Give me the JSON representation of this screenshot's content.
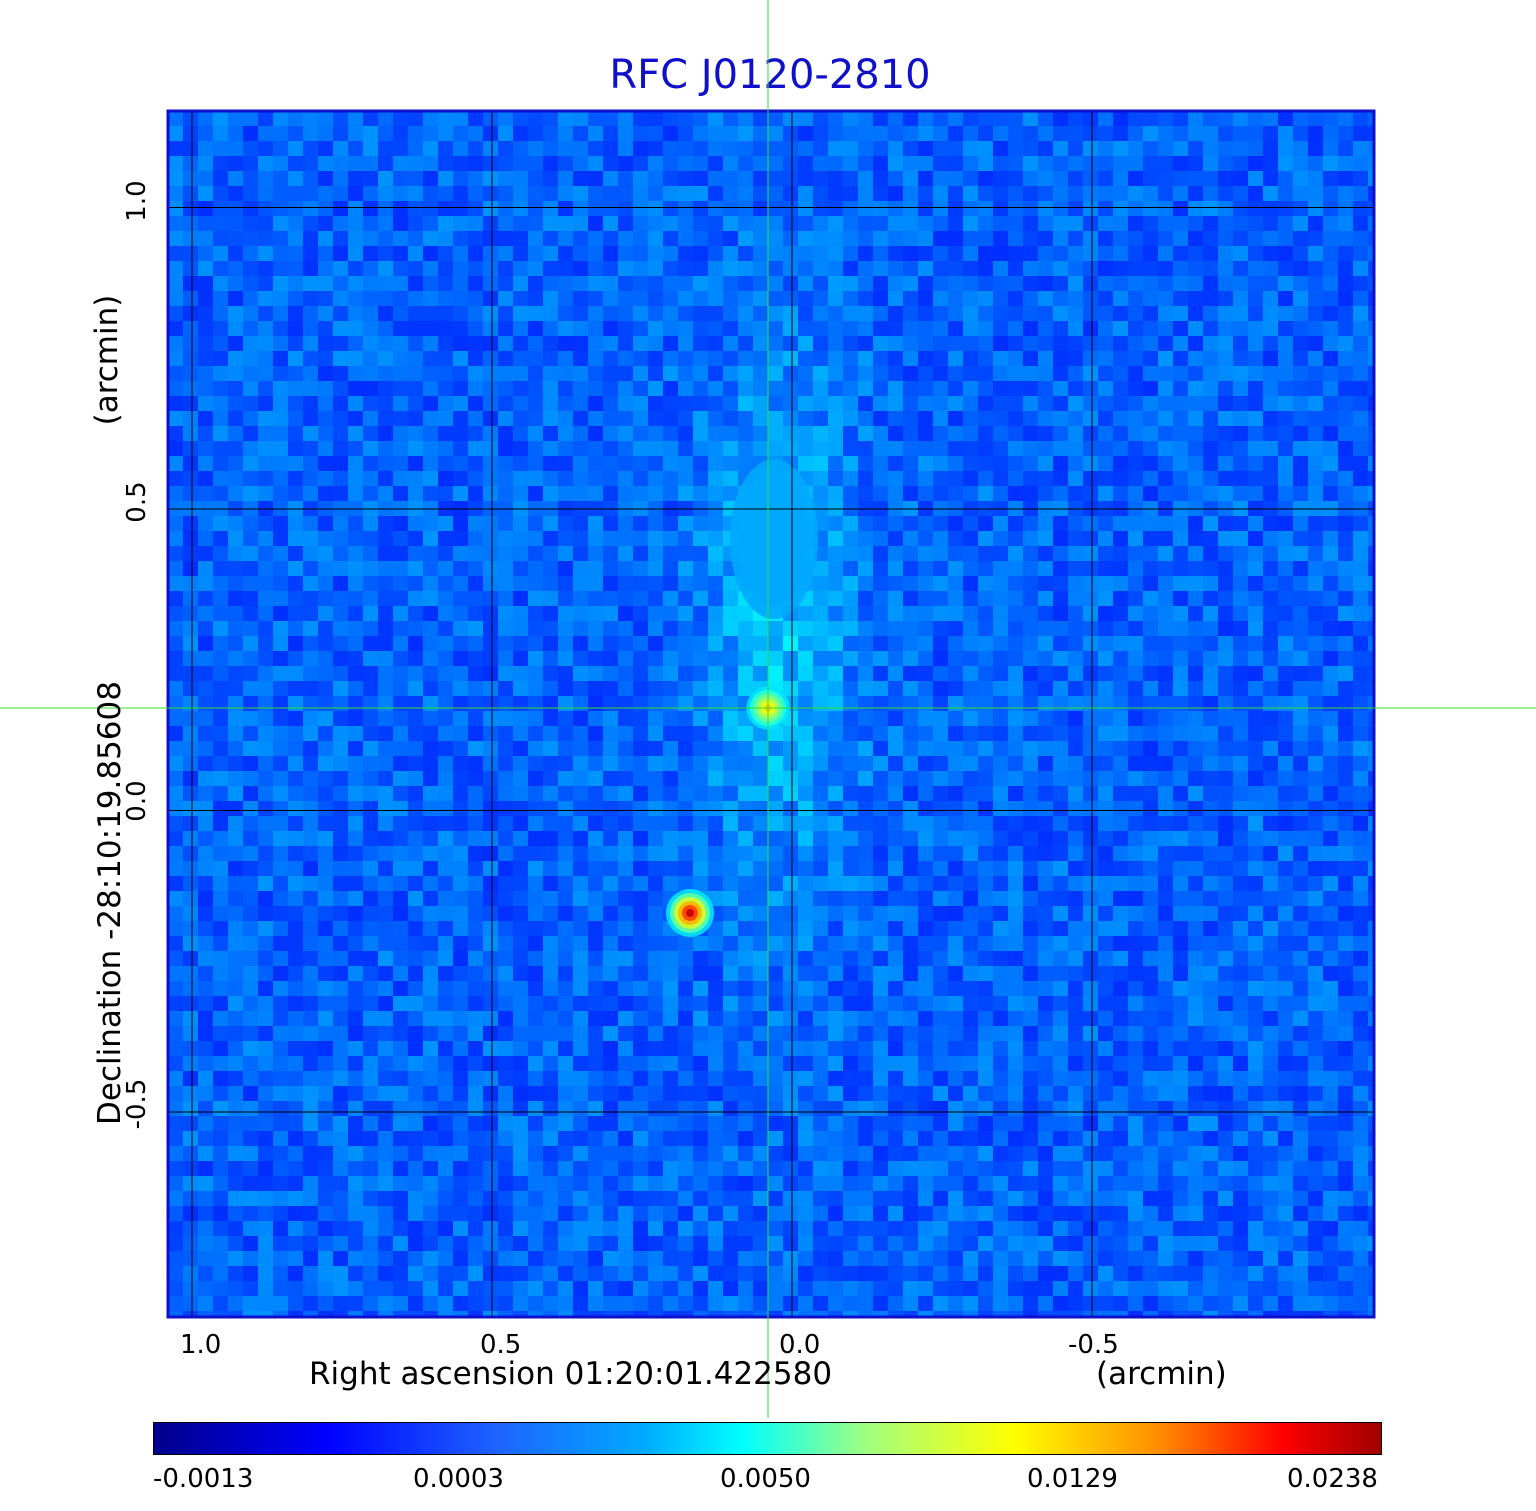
{
  "title": "RFC J0120-2810",
  "x_axis": {
    "label": "Right ascension  01:20:01.422580",
    "unit": "(arcmin)",
    "ticks": [
      "1.0",
      "0.5",
      "0.0",
      "-0.5"
    ],
    "tick_values": [
      1.0,
      0.5,
      0.0,
      -0.5
    ]
  },
  "y_axis": {
    "label": "Declination  -28:10:19.85608",
    "unit": "(arcmin)",
    "ticks": [
      "1.0",
      "0.5",
      "0.0",
      "-0.5"
    ],
    "tick_values": [
      1.0,
      0.5,
      0.0,
      -0.5
    ]
  },
  "colorbar": {
    "tick_labels": [
      "-0.0013",
      "0.0003",
      "0.0050",
      "0.0129",
      "0.0238"
    ],
    "colormap": "jet"
  },
  "chart_data": {
    "type": "heatmap",
    "title": "RFC J0120-2810",
    "xlabel": "Right ascension  01:20:01.422580 (arcmin)",
    "ylabel": "Declination  -28:10:19.85608 (arcmin)",
    "xlim": [
      1.04,
      -0.97
    ],
    "ylim": [
      -0.84,
      1.16
    ],
    "x_ticks": [
      1.0,
      0.5,
      0.0,
      -0.5
    ],
    "y_ticks": [
      1.0,
      0.5,
      0.0,
      -0.5
    ],
    "grid": true,
    "crosshair": {
      "x": 0.04,
      "y": 0.17,
      "color": "#33dd33"
    },
    "colorbar_range": [
      -0.0013,
      0.0238
    ],
    "sources": [
      {
        "x": 0.04,
        "y": 0.17,
        "peak": 0.016
      },
      {
        "x": 0.17,
        "y": -0.17,
        "peak": 0.0238
      },
      {
        "x": 0.03,
        "y": 0.45,
        "peak": 0.006
      }
    ]
  },
  "colors": {
    "frame": "#1010cc",
    "grid": "#000000",
    "crosshair": "#33dd33",
    "background_field": "#1a6cf0"
  }
}
